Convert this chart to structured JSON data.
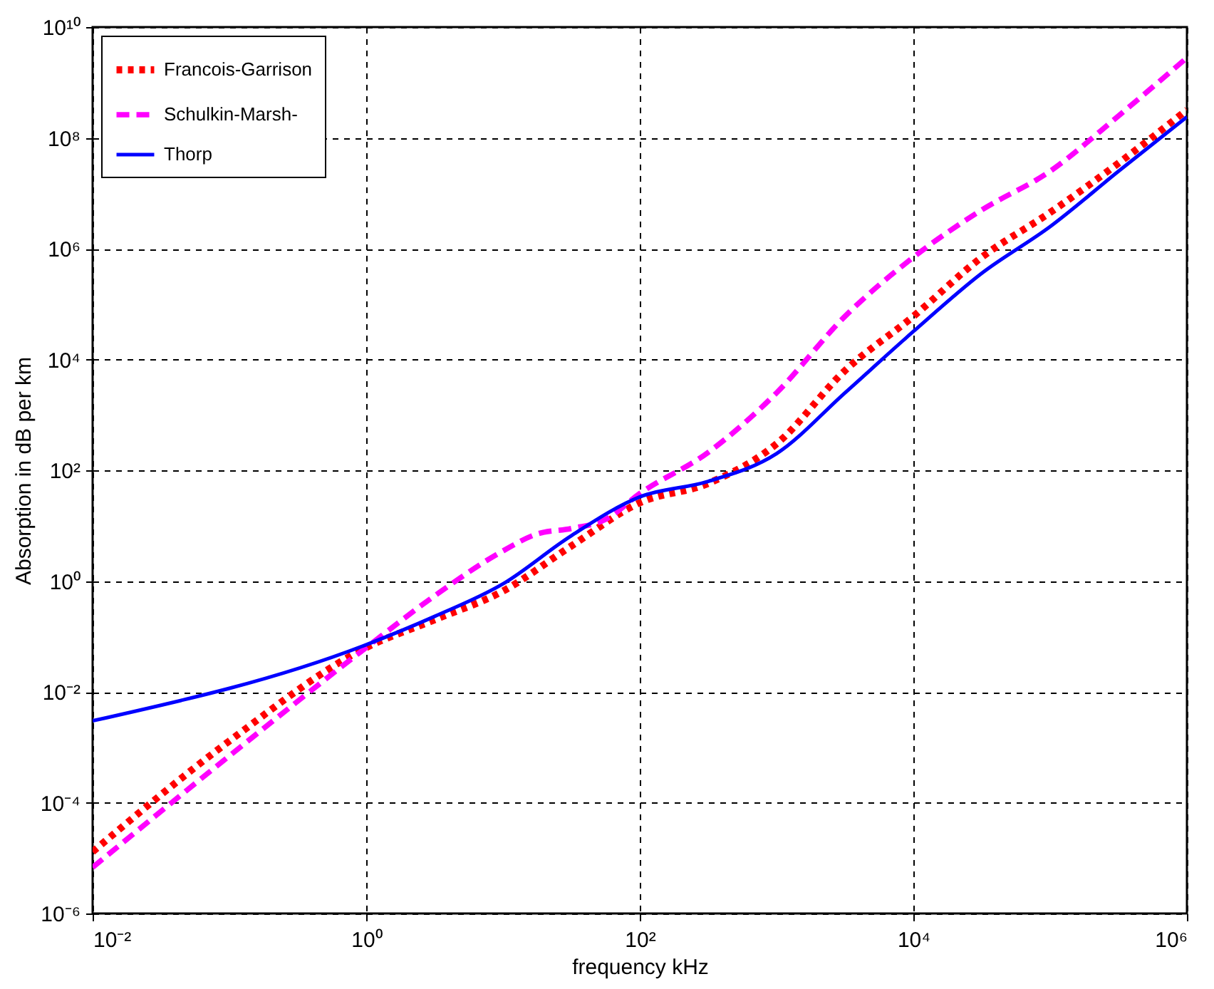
{
  "chart_data": {
    "type": "line",
    "xlabel": "frequency kHz",
    "ylabel": "Absorption in dB per km",
    "log": "xy",
    "grid": true,
    "legend": "top left",
    "xlim": [
      0.01,
      1000000
    ],
    "ylim": [
      1e-06,
      10000000000
    ],
    "xticks": [
      {
        "value": 0.01,
        "label": "10⁻²"
      },
      {
        "value": 1,
        "label": "10⁰"
      },
      {
        "value": 100,
        "label": "10²"
      },
      {
        "value": 10000,
        "label": "10⁴"
      },
      {
        "value": 1000000,
        "label": "10⁶"
      }
    ],
    "yticks": [
      {
        "value": 1e-06,
        "label": "10⁻⁶"
      },
      {
        "value": 0.0001,
        "label": "10⁻⁴"
      },
      {
        "value": 0.01,
        "label": "10⁻²"
      },
      {
        "value": 1,
        "label": "10⁰"
      },
      {
        "value": 100,
        "label": "10²"
      },
      {
        "value": 10000,
        "label": "10⁴"
      },
      {
        "value": 1000000,
        "label": "10⁶"
      },
      {
        "value": 100000000,
        "label": "10⁸"
      },
      {
        "value": 10000000000,
        "label": "10¹⁰"
      }
    ],
    "series": [
      {
        "name": "Francois-Garrison",
        "color": "#ff0000",
        "line_style": "dotted",
        "x": [
          0.01,
          0.1,
          1,
          3.16,
          10,
          31.6,
          100,
          316,
          1000,
          3162,
          10000,
          31623,
          100000,
          316228,
          1000000
        ],
        "values": [
          1.3e-05,
          0.0013,
          0.063,
          0.2,
          0.66,
          4.3,
          26,
          58,
          300,
          6300,
          60000,
          700000,
          4500000,
          35000000,
          320000000
        ]
      },
      {
        "name": "Schulkin-Marsh-",
        "color": "#ff00ff",
        "line_style": "dashed",
        "x": [
          0.01,
          0.1,
          1,
          3.16,
          10,
          17.8,
          31.6,
          56.2,
          100,
          316,
          1000,
          3162,
          10000,
          31623,
          100000,
          316228,
          1000000
        ],
        "values": [
          6.8e-06,
          0.0007,
          0.063,
          0.54,
          3.5,
          7.1,
          8.9,
          13,
          38,
          210,
          2500,
          60000,
          700000,
          5000000,
          25000000,
          250000000,
          2800000000
        ]
      },
      {
        "name": "Thorp",
        "color": "#0000ff",
        "line_style": "solid",
        "x": [
          0.01,
          1,
          3.16,
          10,
          31.6,
          100,
          316,
          1000,
          3162,
          10000,
          31623,
          100000,
          316228,
          1000000
        ],
        "values": [
          0.003,
          0.071,
          0.23,
          0.89,
          6.6,
          33,
          63,
          200,
          2500,
          32000,
          360000,
          2500000,
          25000000,
          240000000
        ]
      }
    ]
  }
}
